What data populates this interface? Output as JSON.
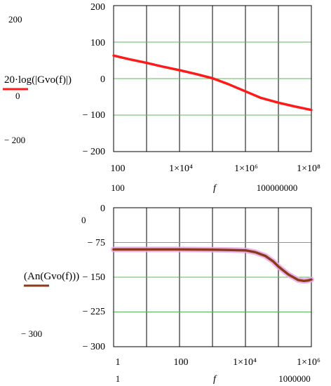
{
  "chart_data": [
    {
      "type": "line",
      "x_scale": "log",
      "ylabel": "20·log(|Gvo(f)|)",
      "xlabel": "f",
      "ylim": [
        -200,
        200
      ],
      "xlim": [
        100,
        100000000
      ],
      "y_ticks": [
        "200",
        "100",
        "0",
        "− 100",
        "− 200"
      ],
      "y_outer_ticks": [
        "200",
        "0",
        "− 200"
      ],
      "x_ticks": [
        "100",
        "1×10⁴",
        "1×10⁶",
        "1×10⁸"
      ],
      "x_range_labels": [
        "100",
        "100000000"
      ],
      "grid": true,
      "series_color": "#ff1a1a",
      "series": [
        {
          "x": [
            100,
            300,
            1000,
            3000,
            10000,
            30000,
            100000,
            300000,
            1000000,
            3000000,
            10000000,
            30000000,
            100000000
          ],
          "y": [
            63,
            53,
            43,
            33,
            23,
            13,
            1,
            -15,
            -35,
            -53,
            -66,
            -76,
            -86
          ]
        }
      ]
    },
    {
      "type": "line",
      "x_scale": "log",
      "ylabel": "(An(Gvo(f)))",
      "xlabel": "f",
      "ylim": [
        -300,
        0
      ],
      "xlim": [
        1,
        1000000
      ],
      "y_ticks": [
        "0",
        "− 75",
        "− 150",
        "− 225",
        "− 300"
      ],
      "y_outer_ticks": [
        "0",
        "− 300"
      ],
      "x_ticks": [
        "1",
        "100",
        "1×10⁴",
        "1×10⁶"
      ],
      "x_range_labels": [
        "1",
        "1000000"
      ],
      "grid": true,
      "series_color": "#8b3a1a",
      "highlight_color": "#e8a8e8",
      "series": [
        {
          "x": [
            1,
            10,
            100,
            1000,
            3000,
            10000,
            20000,
            40000,
            70000,
            100000,
            200000,
            400000,
            600000,
            800000,
            1000000
          ],
          "y": [
            -90,
            -90,
            -90,
            -90.5,
            -91,
            -92,
            -96,
            -104,
            -116,
            -127,
            -144,
            -156,
            -158,
            -157,
            -155
          ]
        }
      ]
    }
  ]
}
